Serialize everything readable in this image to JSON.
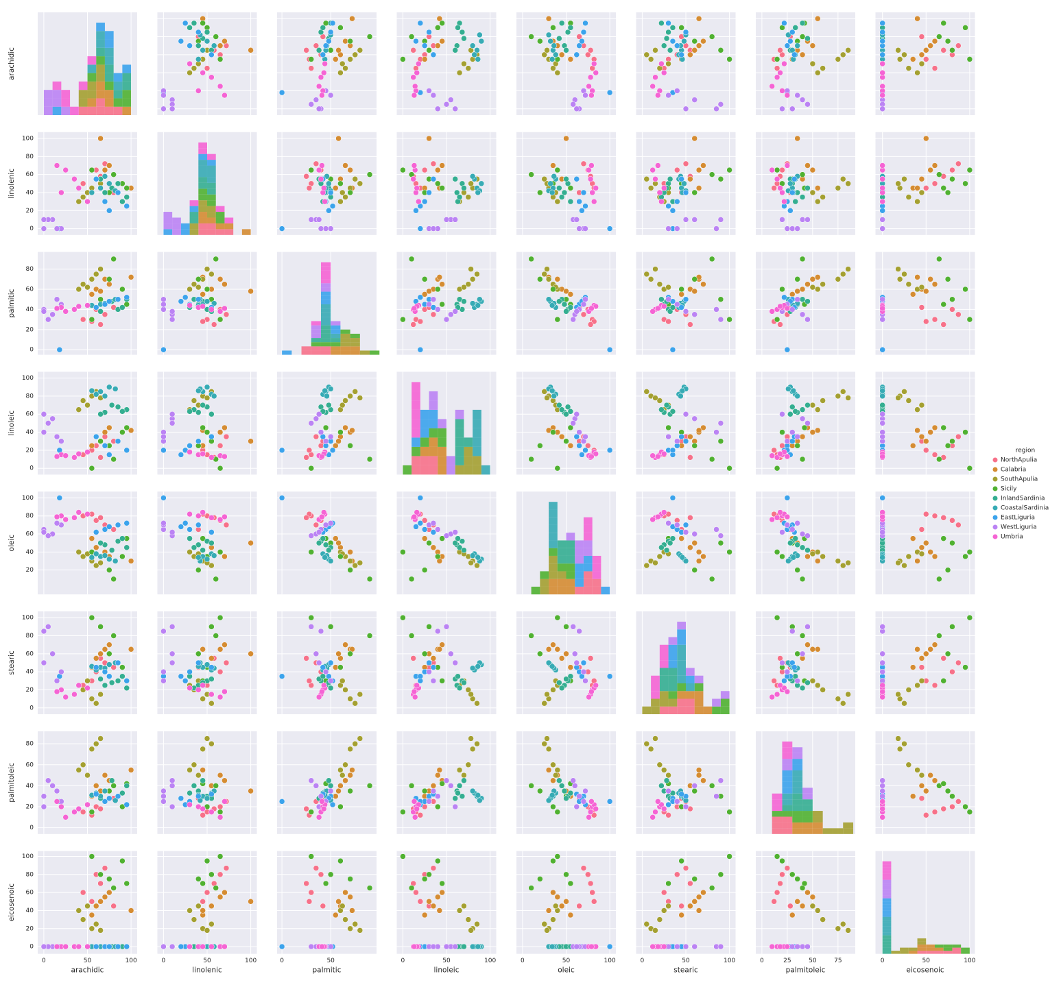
{
  "chart_data": {
    "type": "pairplot",
    "legend_title": "region",
    "variables": [
      {
        "name": "arachidic",
        "lim": [
          -7,
          107
        ],
        "xticks": [
          0,
          50,
          100
        ],
        "yticks": [
          0,
          20,
          40,
          60,
          80,
          100
        ]
      },
      {
        "name": "linolenic",
        "lim": [
          -7,
          107
        ],
        "xticks": [
          0,
          50,
          100
        ],
        "yticks": [
          0,
          20,
          40,
          60,
          80,
          100
        ]
      },
      {
        "name": "palmitic",
        "lim": [
          -5,
          97
        ],
        "xticks": [
          0,
          50
        ],
        "yticks": [
          0,
          20,
          40,
          60,
          80
        ]
      },
      {
        "name": "linoleic",
        "lim": [
          -7,
          107
        ],
        "xticks": [
          0,
          50,
          100
        ],
        "yticks": [
          0,
          20,
          40,
          60,
          80,
          100
        ]
      },
      {
        "name": "oleic",
        "lim": [
          -7,
          107
        ],
        "xticks": [
          0,
          50,
          100
        ],
        "yticks": [
          20,
          40,
          60,
          80,
          100
        ]
      },
      {
        "name": "stearic",
        "lim": [
          -7,
          107
        ],
        "xticks": [
          0,
          50,
          100
        ],
        "yticks": [
          0,
          20,
          40,
          60,
          80,
          100
        ]
      },
      {
        "name": "palmitoleic",
        "lim": [
          -6,
          92
        ],
        "xticks": [
          0,
          25,
          50,
          75
        ],
        "yticks": [
          0,
          20,
          40,
          60,
          80
        ]
      },
      {
        "name": "eicosenoic",
        "lim": [
          -8,
          106
        ],
        "xticks": [
          0,
          50,
          100
        ],
        "yticks": [
          0,
          20,
          40,
          60,
          80,
          100
        ]
      }
    ],
    "series": [
      {
        "name": "NorthApulia",
        "color": "#f77189",
        "values": [
          [
            45,
            50,
            30,
            15,
            80,
            25,
            15,
            60
          ],
          [
            60,
            65,
            40,
            25,
            75,
            40,
            20,
            80
          ],
          [
            70,
            72,
            35,
            35,
            70,
            50,
            25,
            87
          ],
          [
            55,
            45,
            28,
            20,
            82,
            30,
            12,
            50
          ],
          [
            80,
            40,
            42,
            30,
            65,
            45,
            28,
            45
          ],
          [
            65,
            58,
            25,
            12,
            78,
            55,
            18,
            70
          ]
        ]
      },
      {
        "name": "Calabria",
        "color": "#d58c32",
        "values": [
          [
            60,
            55,
            60,
            35,
            45,
            55,
            40,
            45
          ],
          [
            70,
            65,
            70,
            40,
            40,
            65,
            50,
            55
          ],
          [
            55,
            45,
            55,
            25,
            55,
            45,
            30,
            35
          ],
          [
            75,
            70,
            65,
            45,
            35,
            70,
            45,
            60
          ],
          [
            65,
            100,
            58,
            30,
            50,
            60,
            35,
            50
          ],
          [
            100,
            45,
            72,
            42,
            30,
            65,
            55,
            40
          ]
        ]
      },
      {
        "name": "SouthApulia",
        "color": "#a4a031",
        "values": [
          [
            45,
            35,
            65,
            75,
            35,
            20,
            60,
            30
          ],
          [
            55,
            45,
            70,
            80,
            30,
            10,
            75,
            20
          ],
          [
            40,
            30,
            60,
            65,
            40,
            25,
            55,
            40
          ],
          [
            60,
            55,
            75,
            85,
            25,
            5,
            80,
            25
          ],
          [
            50,
            40,
            62,
            70,
            38,
            30,
            50,
            45
          ],
          [
            65,
            50,
            80,
            78,
            28,
            15,
            85,
            18
          ]
        ]
      },
      {
        "name": "Sicily",
        "color": "#50b131",
        "values": [
          [
            65,
            55,
            50,
            30,
            50,
            90,
            30,
            80
          ],
          [
            80,
            60,
            90,
            10,
            10,
            80,
            40,
            65
          ],
          [
            95,
            45,
            45,
            45,
            55,
            30,
            42,
            70
          ],
          [
            55,
            65,
            30,
            0,
            40,
            100,
            15,
            100
          ],
          [
            75,
            40,
            70,
            25,
            20,
            60,
            35,
            75
          ],
          [
            90,
            50,
            60,
            40,
            35,
            45,
            20,
            95
          ]
        ]
      },
      {
        "name": "InlandSardinia",
        "color": "#34ae91",
        "values": [
          [
            70,
            40,
            45,
            62,
            48,
            25,
            35,
            0
          ],
          [
            85,
            50,
            40,
            68,
            52,
            30,
            30,
            0
          ],
          [
            95,
            35,
            50,
            65,
            45,
            22,
            40,
            0
          ],
          [
            65,
            55,
            38,
            60,
            50,
            32,
            28,
            0
          ],
          [
            78,
            45,
            48,
            70,
            42,
            28,
            45,
            0
          ],
          [
            90,
            30,
            42,
            63,
            55,
            35,
            33,
            0
          ]
        ]
      },
      {
        "name": "CoastalSardinia",
        "color": "#37abb5",
        "values": [
          [
            65,
            45,
            45,
            85,
            35,
            45,
            30,
            0
          ],
          [
            75,
            50,
            48,
            90,
            32,
            48,
            28,
            0
          ],
          [
            60,
            55,
            42,
            82,
            38,
            42,
            33,
            0
          ],
          [
            82,
            42,
            50,
            88,
            30,
            50,
            26,
            0
          ],
          [
            70,
            58,
            46,
            80,
            36,
            44,
            35,
            0
          ],
          [
            55,
            40,
            44,
            86,
            34,
            46,
            31,
            0
          ]
        ]
      },
      {
        "name": "EastLiguria",
        "color": "#3ba3ec",
        "values": [
          [
            70,
            30,
            45,
            25,
            65,
            40,
            25,
            0
          ],
          [
            85,
            40,
            50,
            30,
            70,
            50,
            30,
            0
          ],
          [
            95,
            25,
            52,
            20,
            72,
            30,
            22,
            0
          ],
          [
            60,
            55,
            42,
            35,
            62,
            45,
            32,
            0
          ],
          [
            75,
            20,
            48,
            15,
            68,
            35,
            28,
            0
          ],
          [
            18,
            0,
            0,
            20,
            100,
            35,
            25,
            0
          ]
        ]
      },
      {
        "name": "WestLiguria",
        "color": "#bb83f4",
        "values": [
          [
            0,
            0,
            40,
            40,
            65,
            85,
            30,
            0
          ],
          [
            10,
            10,
            35,
            55,
            60,
            60,
            40,
            0
          ],
          [
            20,
            0,
            45,
            30,
            70,
            40,
            25,
            0
          ],
          [
            5,
            10,
            30,
            50,
            58,
            90,
            45,
            0
          ],
          [
            15,
            0,
            50,
            35,
            72,
            30,
            35,
            0
          ],
          [
            0,
            10,
            38,
            60,
            62,
            50,
            20,
            0
          ]
        ]
      },
      {
        "name": "Umbria",
        "color": "#f564d4",
        "values": [
          [
            20,
            40,
            42,
            15,
            80,
            20,
            20,
            0
          ],
          [
            35,
            55,
            40,
            12,
            78,
            15,
            15,
            0
          ],
          [
            50,
            30,
            44,
            18,
            82,
            22,
            22,
            0
          ],
          [
            25,
            65,
            38,
            14,
            76,
            12,
            10,
            0
          ],
          [
            40,
            45,
            43,
            16,
            84,
            25,
            18,
            0
          ],
          [
            15,
            70,
            41,
            13,
            79,
            18,
            25,
            0
          ]
        ]
      }
    ]
  }
}
